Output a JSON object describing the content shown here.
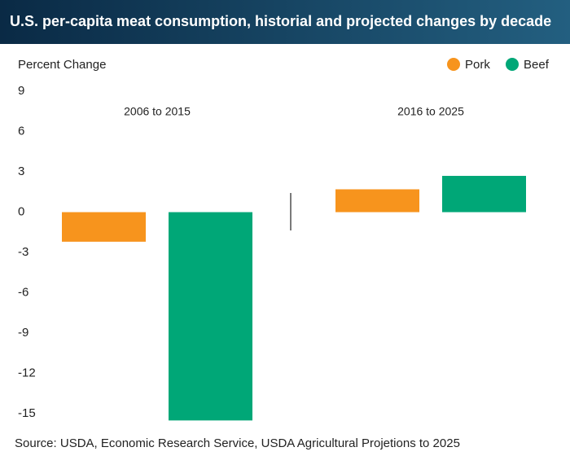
{
  "chart_data": {
    "type": "bar",
    "title": "U.S. per-capita meat consumption, historial and projected changes by decade",
    "y_label": "Percent Change",
    "categories": [
      "2006 to 2015",
      "2016 to 2025"
    ],
    "series": [
      {
        "name": "Pork",
        "color": "#f7941d",
        "values": [
          -2.2,
          1.7
        ]
      },
      {
        "name": "Beef",
        "color": "#00a777",
        "values": [
          -15.5,
          2.7
        ]
      }
    ],
    "ylim": [
      -15.6,
      9
    ],
    "yticks": [
      9,
      6,
      3,
      0,
      -3,
      -6,
      -9,
      -12,
      -15
    ],
    "source": "Source: USDA, Economic Research Service, USDA Agricultural Projetions to 2025"
  }
}
